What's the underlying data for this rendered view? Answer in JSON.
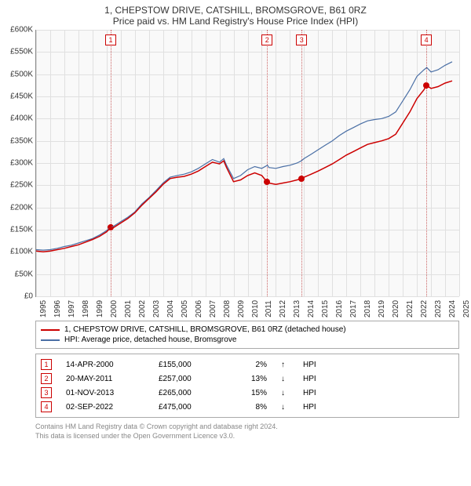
{
  "title": "1, CHEPSTOW DRIVE, CATSHILL, BROMSGROVE, B61 0RZ",
  "subtitle": "Price paid vs. HM Land Registry's House Price Index (HPI)",
  "chart": {
    "type": "line",
    "background_color": "#f9f9f9",
    "grid_color": "#e0e0e0",
    "axis_color": "#888888",
    "x": {
      "min": 1995,
      "max": 2025,
      "ticks": [
        1995,
        1996,
        1997,
        1998,
        1999,
        2000,
        2001,
        2002,
        2003,
        2004,
        2005,
        2006,
        2007,
        2008,
        2009,
        2010,
        2011,
        2012,
        2013,
        2014,
        2015,
        2016,
        2017,
        2018,
        2019,
        2020,
        2021,
        2022,
        2023,
        2024,
        2025
      ]
    },
    "y": {
      "min": 0,
      "max": 600000,
      "ticks": [
        0,
        50000,
        100000,
        150000,
        200000,
        250000,
        300000,
        350000,
        400000,
        450000,
        500000,
        550000,
        600000
      ],
      "tick_labels": [
        "£0",
        "£50K",
        "£100K",
        "£150K",
        "£200K",
        "£250K",
        "£300K",
        "£350K",
        "£400K",
        "£450K",
        "£500K",
        "£550K",
        "£600K"
      ]
    },
    "series": [
      {
        "name": "hpi",
        "label": "HPI: Average price, detached house, Bromsgrove",
        "color": "#4a6fa5",
        "width": 1.2,
        "points": [
          [
            1995.0,
            105000
          ],
          [
            1995.5,
            104000
          ],
          [
            1996.0,
            105000
          ],
          [
            1996.5,
            108000
          ],
          [
            1997.0,
            112000
          ],
          [
            1997.5,
            115000
          ],
          [
            1998.0,
            120000
          ],
          [
            1998.5,
            125000
          ],
          [
            1999.0,
            130000
          ],
          [
            1999.5,
            138000
          ],
          [
            2000.0,
            148000
          ],
          [
            2000.3,
            155000
          ],
          [
            2000.5,
            158000
          ],
          [
            2001.0,
            168000
          ],
          [
            2001.5,
            178000
          ],
          [
            2002.0,
            190000
          ],
          [
            2002.5,
            208000
          ],
          [
            2003.0,
            222000
          ],
          [
            2003.5,
            238000
          ],
          [
            2004.0,
            255000
          ],
          [
            2004.5,
            268000
          ],
          [
            2005.0,
            272000
          ],
          [
            2005.5,
            275000
          ],
          [
            2006.0,
            280000
          ],
          [
            2006.5,
            288000
          ],
          [
            2007.0,
            298000
          ],
          [
            2007.5,
            308000
          ],
          [
            2008.0,
            302000
          ],
          [
            2008.3,
            310000
          ],
          [
            2008.5,
            295000
          ],
          [
            2009.0,
            265000
          ],
          [
            2009.5,
            272000
          ],
          [
            2010.0,
            285000
          ],
          [
            2010.5,
            292000
          ],
          [
            2011.0,
            288000
          ],
          [
            2011.4,
            295000
          ],
          [
            2011.5,
            290000
          ],
          [
            2012.0,
            288000
          ],
          [
            2012.5,
            292000
          ],
          [
            2013.0,
            295000
          ],
          [
            2013.5,
            300000
          ],
          [
            2013.8,
            305000
          ],
          [
            2014.0,
            310000
          ],
          [
            2014.5,
            320000
          ],
          [
            2015.0,
            330000
          ],
          [
            2015.5,
            340000
          ],
          [
            2016.0,
            350000
          ],
          [
            2016.5,
            362000
          ],
          [
            2017.0,
            372000
          ],
          [
            2017.5,
            380000
          ],
          [
            2018.0,
            388000
          ],
          [
            2018.5,
            395000
          ],
          [
            2019.0,
            398000
          ],
          [
            2019.5,
            400000
          ],
          [
            2020.0,
            405000
          ],
          [
            2020.5,
            415000
          ],
          [
            2021.0,
            440000
          ],
          [
            2021.5,
            465000
          ],
          [
            2022.0,
            495000
          ],
          [
            2022.5,
            510000
          ],
          [
            2022.7,
            515000
          ],
          [
            2023.0,
            505000
          ],
          [
            2023.5,
            510000
          ],
          [
            2024.0,
            520000
          ],
          [
            2024.5,
            528000
          ]
        ]
      },
      {
        "name": "property",
        "label": "1, CHEPSTOW DRIVE, CATSHILL, BROMSGROVE, B61 0RZ (detached house)",
        "color": "#cc0000",
        "width": 1.5,
        "points": [
          [
            1995.0,
            102000
          ],
          [
            1995.5,
            100000
          ],
          [
            1996.0,
            102000
          ],
          [
            1996.5,
            105000
          ],
          [
            1997.0,
            108000
          ],
          [
            1997.5,
            112000
          ],
          [
            1998.0,
            116000
          ],
          [
            1998.5,
            122000
          ],
          [
            1999.0,
            128000
          ],
          [
            1999.5,
            135000
          ],
          [
            2000.0,
            145000
          ],
          [
            2000.3,
            155000
          ],
          [
            2000.5,
            155000
          ],
          [
            2001.0,
            165000
          ],
          [
            2001.5,
            175000
          ],
          [
            2002.0,
            188000
          ],
          [
            2002.5,
            205000
          ],
          [
            2003.0,
            220000
          ],
          [
            2003.5,
            235000
          ],
          [
            2004.0,
            252000
          ],
          [
            2004.5,
            265000
          ],
          [
            2005.0,
            268000
          ],
          [
            2005.5,
            270000
          ],
          [
            2006.0,
            275000
          ],
          [
            2006.5,
            282000
          ],
          [
            2007.0,
            292000
          ],
          [
            2007.5,
            302000
          ],
          [
            2008.0,
            298000
          ],
          [
            2008.3,
            305000
          ],
          [
            2008.5,
            290000
          ],
          [
            2009.0,
            258000
          ],
          [
            2009.5,
            262000
          ],
          [
            2010.0,
            272000
          ],
          [
            2010.5,
            278000
          ],
          [
            2011.0,
            272000
          ],
          [
            2011.38,
            257000
          ],
          [
            2011.5,
            255000
          ],
          [
            2012.0,
            252000
          ],
          [
            2012.5,
            255000
          ],
          [
            2013.0,
            258000
          ],
          [
            2013.5,
            262000
          ],
          [
            2013.83,
            265000
          ],
          [
            2014.0,
            268000
          ],
          [
            2014.5,
            275000
          ],
          [
            2015.0,
            282000
          ],
          [
            2015.5,
            290000
          ],
          [
            2016.0,
            298000
          ],
          [
            2016.5,
            308000
          ],
          [
            2017.0,
            318000
          ],
          [
            2017.5,
            326000
          ],
          [
            2018.0,
            334000
          ],
          [
            2018.5,
            342000
          ],
          [
            2019.0,
            346000
          ],
          [
            2019.5,
            350000
          ],
          [
            2020.0,
            355000
          ],
          [
            2020.5,
            365000
          ],
          [
            2021.0,
            390000
          ],
          [
            2021.5,
            415000
          ],
          [
            2022.0,
            445000
          ],
          [
            2022.5,
            465000
          ],
          [
            2022.67,
            475000
          ],
          [
            2023.0,
            468000
          ],
          [
            2023.5,
            472000
          ],
          [
            2024.0,
            480000
          ],
          [
            2024.5,
            485000
          ]
        ]
      }
    ],
    "sale_markers": [
      {
        "idx": "1",
        "x": 2000.29,
        "y": 155000,
        "color": "#cc0000"
      },
      {
        "idx": "2",
        "x": 2011.38,
        "y": 257000,
        "color": "#cc0000"
      },
      {
        "idx": "3",
        "x": 2013.83,
        "y": 265000,
        "color": "#cc0000"
      },
      {
        "idx": "4",
        "x": 2022.67,
        "y": 475000,
        "color": "#cc0000"
      }
    ]
  },
  "legend": [
    {
      "color": "#cc0000",
      "label": "1, CHEPSTOW DRIVE, CATSHILL, BROMSGROVE, B61 0RZ (detached house)"
    },
    {
      "color": "#4a6fa5",
      "label": "HPI: Average price, detached house, Bromsgrove"
    }
  ],
  "sales": [
    {
      "idx": "1",
      "date": "14-APR-2000",
      "price": "£155,000",
      "pct": "2%",
      "arrow": "↑",
      "suffix": "HPI"
    },
    {
      "idx": "2",
      "date": "20-MAY-2011",
      "price": "£257,000",
      "pct": "13%",
      "arrow": "↓",
      "suffix": "HPI"
    },
    {
      "idx": "3",
      "date": "01-NOV-2013",
      "price": "£265,000",
      "pct": "15%",
      "arrow": "↓",
      "suffix": "HPI"
    },
    {
      "idx": "4",
      "date": "02-SEP-2022",
      "price": "£475,000",
      "pct": "8%",
      "arrow": "↓",
      "suffix": "HPI"
    }
  ],
  "footer": {
    "line1": "Contains HM Land Registry data © Crown copyright and database right 2024.",
    "line2": "This data is licensed under the Open Government Licence v3.0."
  }
}
